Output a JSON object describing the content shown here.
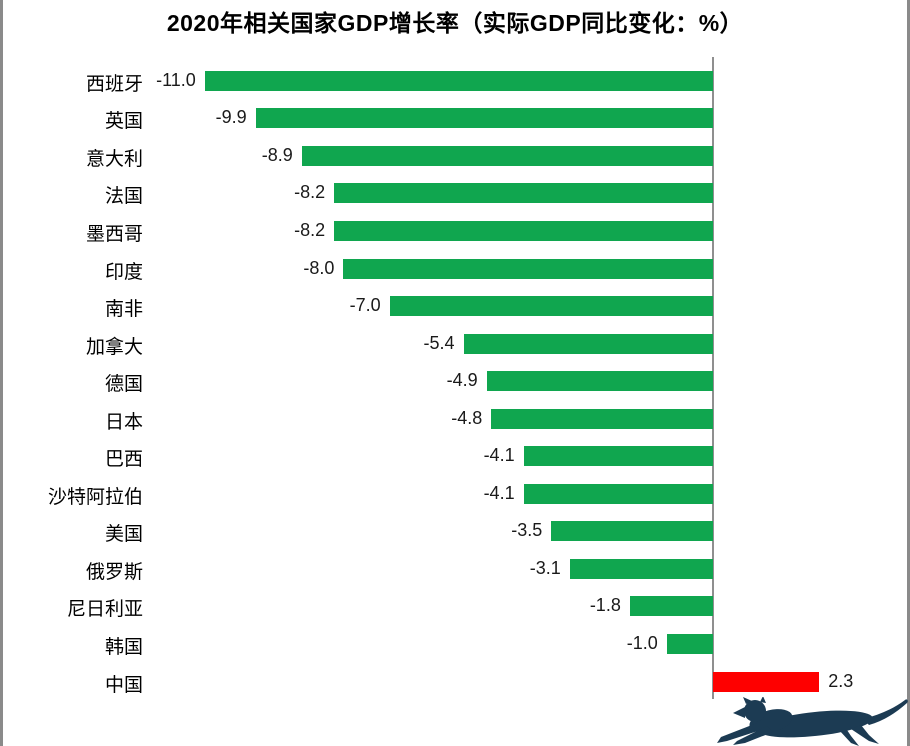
{
  "title": "2020年相关国家GDP增长率（实际GDP同比变化：%）",
  "chart_data": {
    "type": "bar",
    "orientation": "horizontal",
    "title": "2020年相关国家GDP增长率（实际GDP同比变化：%）",
    "categories": [
      "西班牙",
      "英国",
      "意大利",
      "法国",
      "墨西哥",
      "印度",
      "南非",
      "加拿大",
      "德国",
      "日本",
      "巴西",
      "沙特阿拉伯",
      "美国",
      "俄罗斯",
      "尼日利亚",
      "韩国",
      "中国"
    ],
    "values": [
      -11.0,
      -9.9,
      -8.9,
      -8.2,
      -8.2,
      -8.0,
      -7.0,
      -5.4,
      -4.9,
      -4.8,
      -4.1,
      -4.1,
      -3.5,
      -3.1,
      -1.8,
      -1.0,
      2.3
    ],
    "value_labels": [
      "-11.0",
      "-9.9",
      "-8.9",
      "-8.2",
      "-8.2",
      "-8.0",
      "-7.0",
      "-5.4",
      "-4.9",
      "-4.8",
      "-4.1",
      "-4.1",
      "-3.5",
      "-3.1",
      "-1.8",
      "-1.0",
      "2.3"
    ],
    "xlim": [
      -11.0,
      4.3
    ],
    "grid": false,
    "legend": false,
    "colors": {
      "negative_bar": "#10a64f",
      "positive_bar": "#fe0000",
      "axis_line": "#8f8f8f",
      "label_text": "#000000"
    }
  },
  "frame": {
    "border_color": "#8a8a8a"
  },
  "logo": {
    "icon": "panther-logo",
    "color": "#1c3b53"
  }
}
